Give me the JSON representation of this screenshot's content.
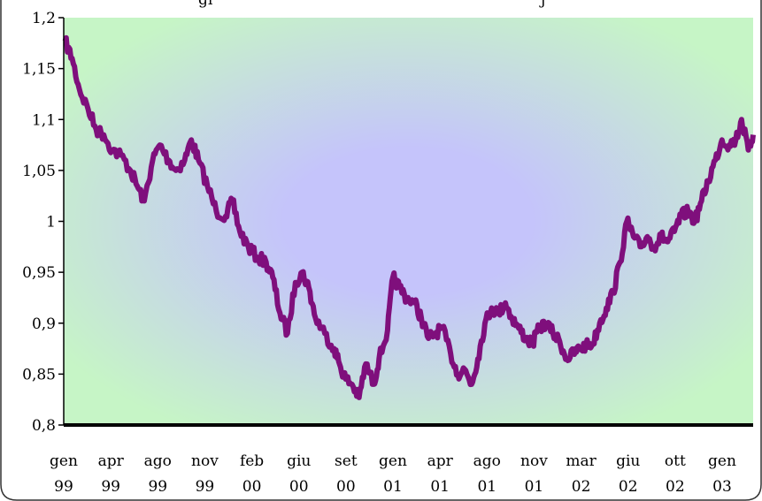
{
  "chart_data": {
    "type": "line",
    "title": "",
    "title_partial": "gi",
    "title_partial_2": "j",
    "xlabel": "",
    "ylabel": "",
    "ylim": [
      0.8,
      1.2
    ],
    "yticks": [
      {
        "value": 0.8,
        "label": "0,8"
      },
      {
        "value": 0.85,
        "label": "0,85"
      },
      {
        "value": 0.9,
        "label": "0,9"
      },
      {
        "value": 0.95,
        "label": "0,95"
      },
      {
        "value": 1.0,
        "label": "1"
      },
      {
        "value": 1.05,
        "label": "1,05"
      },
      {
        "value": 1.1,
        "label": "1,1"
      },
      {
        "value": 1.15,
        "label": "1,15"
      },
      {
        "value": 1.2,
        "label": "1,2"
      }
    ],
    "xlim": [
      "1999-01-01",
      "2003-03-31"
    ],
    "xticks": [
      {
        "date": "1999-01-01",
        "month": "gen",
        "year": "99"
      },
      {
        "date": "1999-04-01",
        "month": "apr",
        "year": "99"
      },
      {
        "date": "1999-08-01",
        "month": "ago",
        "year": "99"
      },
      {
        "date": "1999-11-01",
        "month": "nov",
        "year": "99"
      },
      {
        "date": "2000-02-01",
        "month": "feb",
        "year": "00"
      },
      {
        "date": "2000-06-01",
        "month": "giu",
        "year": "00"
      },
      {
        "date": "2000-09-01",
        "month": "set",
        "year": "00"
      },
      {
        "date": "2001-01-01",
        "month": "gen",
        "year": "01"
      },
      {
        "date": "2001-04-01",
        "month": "apr",
        "year": "01"
      },
      {
        "date": "2001-08-01",
        "month": "ago",
        "year": "01"
      },
      {
        "date": "2001-11-01",
        "month": "nov",
        "year": "01"
      },
      {
        "date": "2002-03-01",
        "month": "mar",
        "year": "02"
      },
      {
        "date": "2002-06-01",
        "month": "giu",
        "year": "02"
      },
      {
        "date": "2002-10-01",
        "month": "ott",
        "year": "02"
      },
      {
        "date": "2003-01-01",
        "month": "gen",
        "year": "03"
      }
    ],
    "grid": false,
    "legend": "none",
    "series": [
      {
        "color": "#7f0f7c",
        "points": [
          [
            "1999-01-04",
            1.177
          ],
          [
            "1999-01-20",
            1.16
          ],
          [
            "1999-02-05",
            1.13
          ],
          [
            "1999-02-25",
            1.11
          ],
          [
            "1999-03-15",
            1.09
          ],
          [
            "1999-04-01",
            1.085
          ],
          [
            "1999-04-20",
            1.07
          ],
          [
            "1999-05-10",
            1.065
          ],
          [
            "1999-05-31",
            1.05
          ],
          [
            "1999-06-15",
            1.035
          ],
          [
            "1999-07-01",
            1.02
          ],
          [
            "1999-07-20",
            1.06
          ],
          [
            "1999-08-05",
            1.075
          ],
          [
            "1999-08-25",
            1.06
          ],
          [
            "1999-09-10",
            1.05
          ],
          [
            "1999-09-30",
            1.06
          ],
          [
            "1999-10-15",
            1.08
          ],
          [
            "1999-10-31",
            1.06
          ],
          [
            "1999-11-20",
            1.035
          ],
          [
            "1999-12-10",
            1.01
          ],
          [
            "1999-12-31",
            1.005
          ],
          [
            "2000-01-15",
            1.02
          ],
          [
            "2000-02-01",
            0.99
          ],
          [
            "2000-02-20",
            0.975
          ],
          [
            "2000-03-10",
            0.965
          ],
          [
            "2000-03-31",
            0.96
          ],
          [
            "2000-04-15",
            0.945
          ],
          [
            "2000-05-01",
            0.91
          ],
          [
            "2000-05-18",
            0.89
          ],
          [
            "2000-06-05",
            0.94
          ],
          [
            "2000-06-20",
            0.95
          ],
          [
            "2000-07-05",
            0.935
          ],
          [
            "2000-07-20",
            0.905
          ],
          [
            "2000-08-10",
            0.89
          ],
          [
            "2000-08-31",
            0.875
          ],
          [
            "2000-09-12",
            0.86
          ],
          [
            "2000-09-26",
            0.845
          ],
          [
            "2000-10-10",
            0.84
          ],
          [
            "2000-10-26",
            0.827
          ],
          [
            "2000-11-10",
            0.86
          ],
          [
            "2000-11-28",
            0.84
          ],
          [
            "2000-12-10",
            0.865
          ],
          [
            "2000-12-29",
            0.893
          ],
          [
            "2001-01-10",
            0.945
          ],
          [
            "2001-01-25",
            0.935
          ],
          [
            "2001-02-10",
            0.925
          ],
          [
            "2001-02-28",
            0.92
          ],
          [
            "2001-03-15",
            0.905
          ],
          [
            "2001-03-31",
            0.885
          ],
          [
            "2001-04-15",
            0.89
          ],
          [
            "2001-05-01",
            0.895
          ],
          [
            "2001-05-20",
            0.87
          ],
          [
            "2001-06-05",
            0.85
          ],
          [
            "2001-06-20",
            0.855
          ],
          [
            "2001-07-06",
            0.84
          ],
          [
            "2001-07-20",
            0.865
          ],
          [
            "2001-08-05",
            0.9
          ],
          [
            "2001-08-20",
            0.915
          ],
          [
            "2001-09-05",
            0.91
          ],
          [
            "2001-09-20",
            0.92
          ],
          [
            "2001-10-05",
            0.905
          ],
          [
            "2001-10-20",
            0.895
          ],
          [
            "2001-11-05",
            0.885
          ],
          [
            "2001-11-20",
            0.88
          ],
          [
            "2001-12-05",
            0.895
          ],
          [
            "2001-12-20",
            0.9
          ],
          [
            "2002-01-05",
            0.89
          ],
          [
            "2002-01-20",
            0.882
          ],
          [
            "2002-02-05",
            0.865
          ],
          [
            "2002-02-20",
            0.87
          ],
          [
            "2002-03-05",
            0.875
          ],
          [
            "2002-03-20",
            0.878
          ],
          [
            "2002-04-05",
            0.88
          ],
          [
            "2002-04-20",
            0.9
          ],
          [
            "2002-05-05",
            0.915
          ],
          [
            "2002-05-20",
            0.93
          ],
          [
            "2002-06-05",
            0.96
          ],
          [
            "2002-06-20",
            1.0
          ],
          [
            "2002-07-05",
            0.985
          ],
          [
            "2002-07-20",
            0.975
          ],
          [
            "2002-08-05",
            0.985
          ],
          [
            "2002-08-20",
            0.975
          ],
          [
            "2002-09-05",
            0.985
          ],
          [
            "2002-09-20",
            0.98
          ],
          [
            "2002-10-05",
            0.99
          ],
          [
            "2002-10-20",
            1.005
          ],
          [
            "2002-11-05",
            1.01
          ],
          [
            "2002-11-20",
            1.0
          ],
          [
            "2002-12-05",
            1.02
          ],
          [
            "2002-12-20",
            1.04
          ],
          [
            "2003-01-05",
            1.06
          ],
          [
            "2003-01-20",
            1.08
          ],
          [
            "2003-02-05",
            1.075
          ],
          [
            "2003-02-20",
            1.08
          ],
          [
            "2003-03-05",
            1.1
          ],
          [
            "2003-03-20",
            1.07
          ],
          [
            "2003-03-31",
            1.085
          ]
        ]
      }
    ]
  },
  "colors": {
    "line": "#7f0f7c",
    "plot_edge": "#c6f5c6",
    "plot_center": "#c5c4fb",
    "frame": "#333333",
    "axis": "#000000"
  }
}
